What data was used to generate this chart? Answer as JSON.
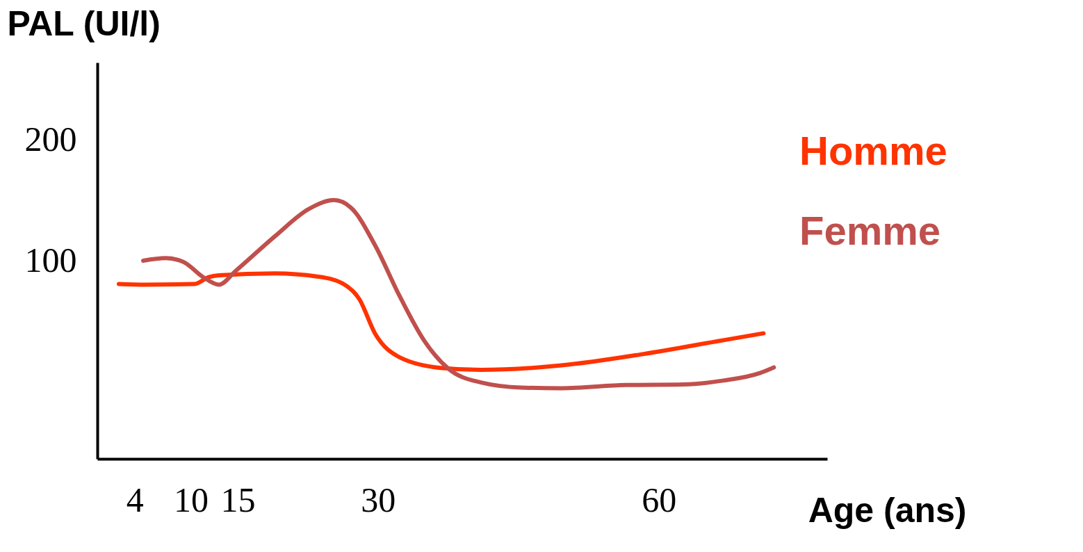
{
  "chart_data": {
    "type": "line",
    "xlabel": "Age (ans)",
    "ylabel": "PAL (UI/l)",
    "xlim": [
      0,
      78
    ],
    "xticks": [
      4,
      10,
      15,
      30,
      60
    ],
    "ylim": [
      -63,
      264
    ],
    "yticks": [
      100,
      200
    ],
    "grid": false,
    "marker": "none",
    "line_style": "solid",
    "series": [
      {
        "name": "Homme",
        "color": "#ff3300",
        "x": [
          2.3,
          5.1,
          10.4,
          11.9,
          13.0,
          19.0,
          23.5,
          26.2,
          28.0,
          29.7,
          32.3,
          36.7,
          41.0,
          49.6,
          58.3,
          66.9,
          71.2
        ],
        "values": [
          81.3,
          80.7,
          81.3,
          87,
          88.5,
          90.1,
          87.5,
          81.8,
          68.8,
          40.1,
          20.8,
          12,
          10.4,
          14.1,
          23.4,
          34.9,
          40.6
        ]
      },
      {
        "name": "Femme",
        "color": "#c0504d",
        "x": [
          4.9,
          7.3,
          9.2,
          11.3,
          13.0,
          14.8,
          19.0,
          22.6,
          25.3,
          27.1,
          29.7,
          32.3,
          34.9,
          37.5,
          41.0,
          45.3,
          49.6,
          56.5,
          62.6,
          66.9,
          70.8,
          72.3
        ],
        "values": [
          100.5,
          102.6,
          99.5,
          87,
          80.7,
          92.2,
          120.8,
          143.2,
          150.5,
          144.3,
          113,
          71.4,
          34.9,
          11.5,
          0,
          -4.2,
          -4.7,
          -2.1,
          -1.6,
          1.6,
          7.8,
          12.5
        ]
      }
    ]
  }
}
